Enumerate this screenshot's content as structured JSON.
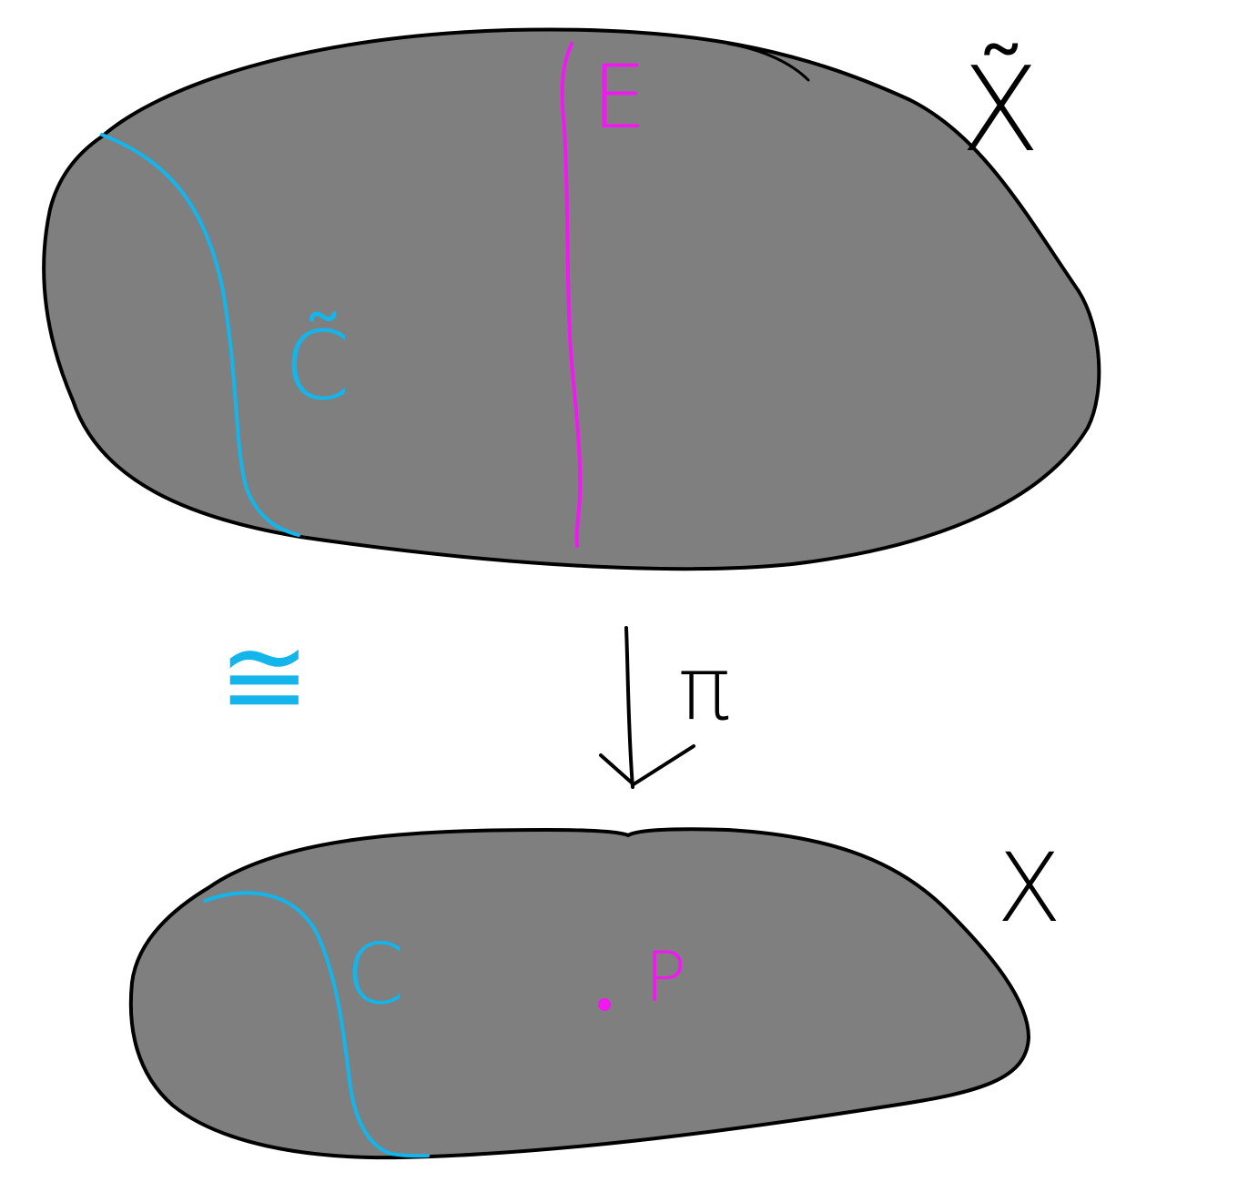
{
  "colors": {
    "background": "#ffffff",
    "surface_fill": "#7f7f7f",
    "outline": "#000000",
    "curve": "#13b5ea",
    "exceptional": "#f218f2"
  },
  "top_surface": {
    "label": "X̃",
    "curve_label": "C̃",
    "divisor_label": "E"
  },
  "relation": {
    "symbol": "≅",
    "map_label": "π"
  },
  "bottom_surface": {
    "label": "X",
    "curve_label": "C",
    "point_label": "P"
  }
}
